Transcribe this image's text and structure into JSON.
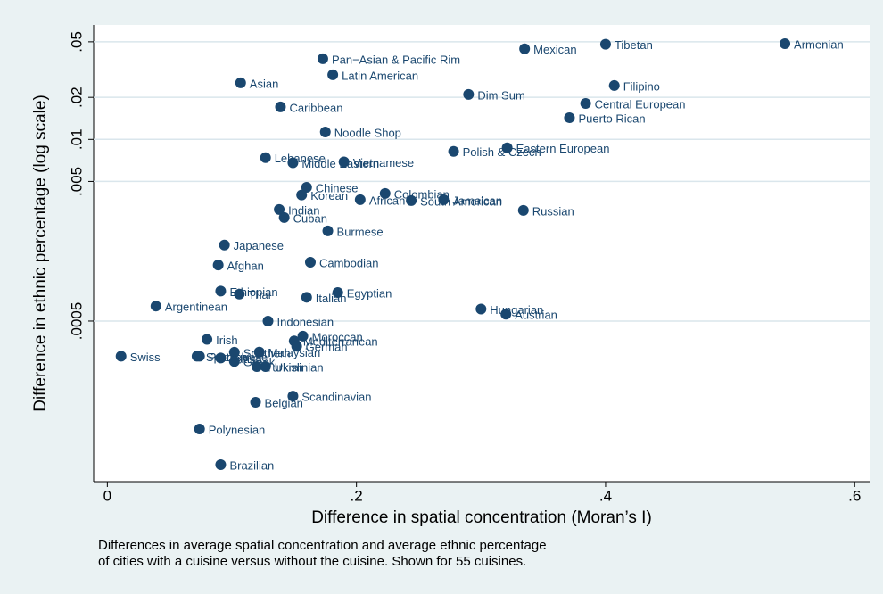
{
  "chart_data": {
    "type": "scatter",
    "xlabel": "Difference in spatial concentration (Moran’s I)",
    "ylabel": "Difference in ethnic percentage  (log scale)",
    "caption": [
      "Differences in average spatial concentration and average ethnic percentage",
      "of cities with a cuisine versus without the cuisine. Shown for 55 cuisines."
    ],
    "color": "#1a476f",
    "ylog": true,
    "grid": true,
    "labels": [
      "Armenian",
      "Tibetan",
      "Mexican",
      "Pan−Asian & Pacific Rim",
      "Latin American",
      "Asian",
      "Filipino",
      "Dim Sum",
      "Central European",
      "Caribbean",
      "Puerto Rican",
      "Noodle Shop",
      "Eastern European",
      "Polish & Czech",
      "Lebanese",
      "Middle Eastern",
      "Vietnamese",
      "Chinese",
      "Colombian",
      "Korean",
      "African",
      "South American",
      "Jamaican",
      "Indian",
      "Russian",
      "Cuban",
      "Burmese",
      "Japanese",
      "Cambodian",
      "Afghan",
      "Ethiopian",
      "Thai",
      "Egyptian",
      "Italian",
      "Argentinean",
      "Hungarian",
      "Austrian",
      "Indonesian",
      "Irish",
      "Moroccan",
      "Mediterranean",
      "German",
      "Swiss",
      "Malaysian",
      "Spanish",
      "Portuguese",
      "British",
      "Southern",
      "Greek",
      "Turkish",
      "Ukrainian",
      "Scandinavian",
      "Belgian",
      "Polynesian",
      "Brazilian"
    ],
    "x": [
      0.544,
      0.4,
      0.335,
      0.173,
      0.181,
      0.107,
      0.407,
      0.29,
      0.384,
      0.139,
      0.371,
      0.175,
      0.321,
      0.278,
      0.127,
      0.149,
      0.19,
      0.16,
      0.223,
      0.156,
      0.203,
      0.244,
      0.27,
      0.138,
      0.334,
      0.142,
      0.177,
      0.094,
      0.163,
      0.089,
      0.091,
      0.106,
      0.185,
      0.16,
      0.039,
      0.3,
      0.32,
      0.129,
      0.08,
      0.157,
      0.15,
      0.152,
      0.011,
      0.122,
      0.072,
      0.074,
      0.091,
      0.102,
      0.102,
      0.12,
      0.127,
      0.149,
      0.119,
      0.074,
      0.091
    ],
    "y": [
      0.0485,
      0.048,
      0.0445,
      0.0378,
      0.029,
      0.0254,
      0.0243,
      0.021,
      0.0181,
      0.0171,
      0.0143,
      0.0113,
      0.0087,
      0.0082,
      0.0074,
      0.0068,
      0.0069,
      0.00454,
      0.0041,
      0.004,
      0.0037,
      0.00365,
      0.0037,
      0.00315,
      0.0031,
      0.00276,
      0.00221,
      0.00175,
      0.00132,
      0.00126,
      0.00082,
      0.00078,
      0.0008,
      0.00074,
      0.00064,
      0.00061,
      0.00056,
      0.0005,
      0.00037,
      0.00039,
      0.00036,
      0.00033,
      0.00028,
      0.0003,
      0.00028,
      0.00028,
      0.000272,
      0.000299,
      0.000257,
      0.000236,
      0.000236,
      0.000145,
      0.000131,
      8.43e-05,
      4.68e-05
    ],
    "xlim": [
      -0.011,
      0.612
    ],
    "xticks": [
      0,
      {
        "value": 0.2,
        "label": ".2"
      },
      {
        "value": 0.4,
        "label": ".4"
      },
      {
        "value": 0.6,
        "label": ".6"
      }
    ],
    "ylim": [
      3.54e-05,
      0.066
    ],
    "yticks": [
      {
        "value": 0.05,
        "label": ".05"
      },
      {
        "value": 0.02,
        "label": ".02"
      },
      {
        "value": 0.01,
        "label": ".01"
      },
      {
        "value": 0.005,
        "label": ".005"
      },
      {
        "value": 0.0005,
        "label": ".0005"
      }
    ]
  }
}
